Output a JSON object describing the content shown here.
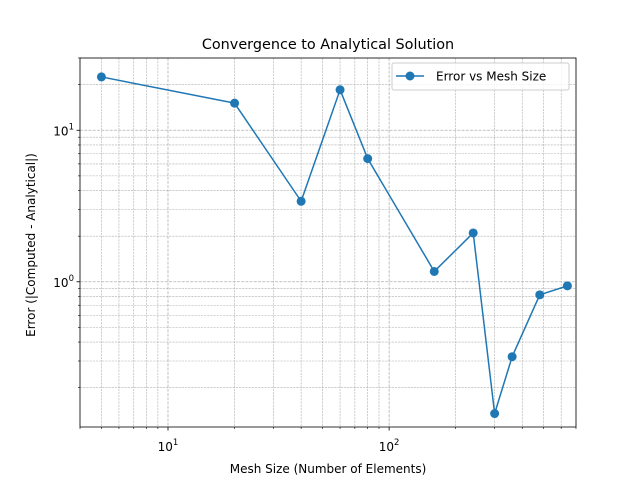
{
  "chart_data": {
    "type": "line",
    "title": "Convergence to Analytical Solution",
    "xlabel": "Mesh Size (Number of Elements)",
    "ylabel": "Error (|Computed - Analytical|)",
    "xscale": "log",
    "yscale": "log",
    "xlim": [
      4,
      700
    ],
    "ylim": [
      0.11,
      30
    ],
    "grid": true,
    "legend_position": "top-right",
    "x_ticks": [
      {
        "value": 10,
        "base": "10",
        "exp": "1"
      },
      {
        "value": 100,
        "base": "10",
        "exp": "2"
      }
    ],
    "y_ticks": [
      {
        "value": 1,
        "base": "10",
        "exp": "0"
      },
      {
        "value": 10,
        "base": "10",
        "exp": "1"
      }
    ],
    "series": [
      {
        "name": "Error vs Mesh Size",
        "color": "#1f77b4",
        "marker": "circle",
        "x": [
          5,
          20,
          40,
          60,
          80,
          160,
          240,
          300,
          360,
          480,
          640
        ],
        "y": [
          22.5,
          15.1,
          3.4,
          18.5,
          6.5,
          1.17,
          2.1,
          0.135,
          0.32,
          0.82,
          0.94
        ]
      }
    ]
  }
}
